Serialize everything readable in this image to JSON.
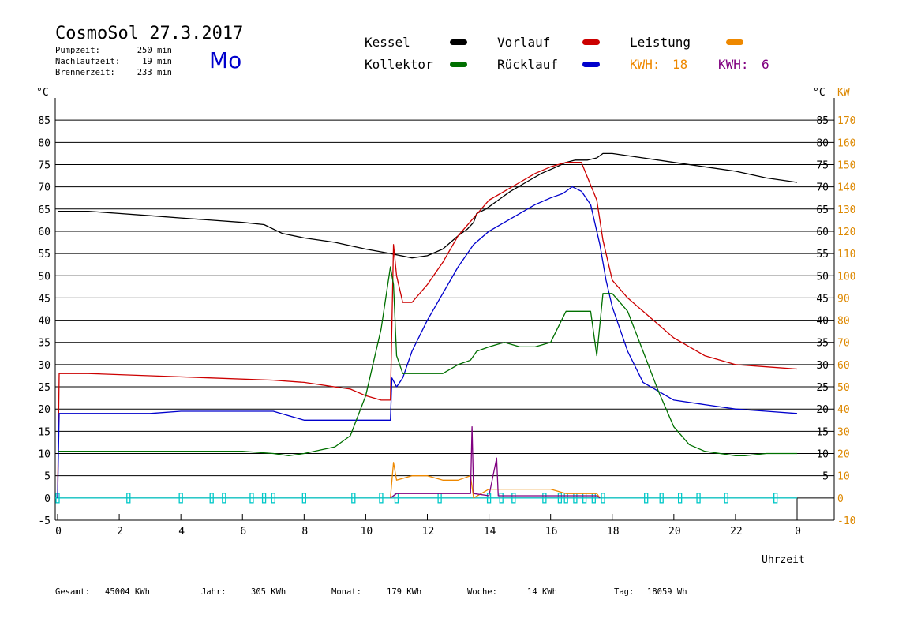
{
  "header": {
    "title": "CosmoSol 27.3.2017",
    "pump_label": "Pumpzeit:",
    "pump_value": "250 min",
    "nachlauf_label": "Nachlaufzeit:",
    "nachlauf_value": "19 min",
    "brenner_label": "Brennerzeit:",
    "brenner_value": "233 min",
    "weekday": "Mo"
  },
  "legend": {
    "kessel": "Kessel",
    "kollektor": "Kollektor",
    "vorlauf": "Vorlauf",
    "ruecklauf": "Rücklauf",
    "leistung": "Leistung",
    "kwh1_label": "KWH:",
    "kwh1_value": "18",
    "kwh2_label": "KWH:",
    "kwh2_value": "6"
  },
  "colors": {
    "kessel": "#000000",
    "kollektor": "#007000",
    "vorlauf": "#cc0000",
    "ruecklauf": "#0000cc",
    "leistung": "#ee8800",
    "kwh2": "#800080",
    "pump": "#00c8c8",
    "kw_axis": "#dd8800"
  },
  "axes": {
    "left_unit": "°C",
    "right_unit_c": "°C",
    "right_unit_kw": "KW",
    "xlabel": "Uhrzeit"
  },
  "footer": {
    "gesamt_label": "Gesamt:",
    "gesamt_value": "45004 KWh",
    "jahr_label": "Jahr:",
    "jahr_value": "305 KWh",
    "monat_label": "Monat:",
    "monat_value": "179 KWh",
    "woche_label": "Woche:",
    "woche_value": "14 KWh",
    "tag_label": "Tag:",
    "tag_value": "18059 Wh"
  },
  "chart_data": {
    "type": "line",
    "xlim": [
      0,
      24
    ],
    "ylim": [
      -5,
      90
    ],
    "ylim_kw": [
      -10,
      180
    ],
    "y_ticks_left": [
      "-5",
      "0",
      "5",
      "10",
      "15",
      "20",
      "25",
      "30",
      "35",
      "40",
      "45",
      "50",
      "55",
      "60",
      "65",
      "70",
      "75",
      "80",
      "85"
    ],
    "y_ticks_right_c": [
      "5",
      "10",
      "15",
      "20",
      "25",
      "30",
      "35",
      "40",
      "45",
      "50",
      "55",
      "60",
      "65",
      "70",
      "75",
      "80",
      "85"
    ],
    "y_ticks_right_kw": [
      "-10",
      "0",
      "10",
      "20",
      "30",
      "40",
      "50",
      "60",
      "70",
      "80",
      "90",
      "100",
      "110",
      "120",
      "130",
      "140",
      "150",
      "160",
      "170"
    ],
    "x_ticks": [
      "0",
      "2",
      "4",
      "6",
      "8",
      "10",
      "12",
      "14",
      "16",
      "18",
      "20",
      "22",
      "0"
    ],
    "x_tick_values": [
      0,
      2,
      4,
      6,
      8,
      10,
      12,
      14,
      16,
      18,
      20,
      22,
      24
    ],
    "grid": true,
    "series": [
      {
        "key": "kessel",
        "x": [
          0,
          1,
          2,
          3,
          4,
          5,
          6,
          6.7,
          7.3,
          8,
          9,
          10,
          10.8,
          11.5,
          12,
          12.5,
          13,
          13.3,
          13.5,
          13.6,
          13.9,
          14.3,
          14.7,
          15.2,
          15.7,
          16.2,
          16.5,
          16.8,
          17.2,
          17.5,
          17.7,
          18,
          19,
          20,
          21,
          22,
          23,
          24
        ],
        "y": [
          64.5,
          64.5,
          64,
          63.5,
          63,
          62.5,
          62,
          61.5,
          59.5,
          58.5,
          57.5,
          56,
          55,
          54,
          54.5,
          56,
          59,
          60.5,
          62,
          64,
          65,
          67,
          69,
          71,
          73,
          74.5,
          75.5,
          76,
          76,
          76.5,
          77.5,
          77.5,
          76.5,
          75.5,
          74.5,
          73.5,
          72,
          71
        ]
      },
      {
        "key": "vorlauf",
        "x": [
          0,
          0.05,
          0.1,
          1,
          3,
          5,
          7,
          8,
          9,
          9.5,
          10,
          10.5,
          10.8,
          10.9,
          11,
          11.2,
          11.5,
          12,
          12.5,
          13,
          13.5,
          14,
          14.5,
          15,
          15.5,
          16,
          16.5,
          17,
          17.5,
          17.7,
          18,
          18.5,
          19,
          20,
          21,
          22,
          23,
          24
        ],
        "y": [
          0,
          28,
          28,
          28,
          27.5,
          27,
          26.5,
          26,
          25,
          24.5,
          23,
          22,
          22,
          57,
          50,
          44,
          44,
          48,
          53,
          59,
          63,
          67,
          69,
          71,
          73,
          74.5,
          75.5,
          75.5,
          67,
          58,
          49,
          45,
          42,
          36,
          32,
          30,
          29.5,
          29
        ]
      },
      {
        "key": "ruecklauf",
        "x": [
          0,
          0.05,
          0.1,
          1,
          3,
          4,
          5,
          6,
          7,
          8,
          9,
          10,
          10.8,
          10.85,
          11,
          11.2,
          11.5,
          12,
          12.5,
          13,
          13.5,
          14,
          14.5,
          15,
          15.5,
          16,
          16.4,
          16.7,
          17,
          17.3,
          17.6,
          17.8,
          18,
          18.5,
          19,
          20,
          21,
          22,
          23,
          24
        ],
        "y": [
          0,
          19,
          19,
          19,
          19,
          19.5,
          19.5,
          19.5,
          19.5,
          17.5,
          17.5,
          17.5,
          17.5,
          27,
          25,
          27,
          33,
          40,
          46,
          52,
          57,
          60,
          62,
          64,
          66,
          67.5,
          68.5,
          70,
          69,
          66,
          57,
          49,
          43,
          33,
          26,
          22,
          21,
          20,
          19.5,
          19
        ]
      },
      {
        "key": "kollektor",
        "x": [
          0,
          1,
          2,
          3,
          4,
          5,
          6,
          7,
          7.5,
          8,
          9,
          9.5,
          10,
          10.5,
          10.8,
          10.9,
          11,
          11.2,
          11.5,
          12,
          12.5,
          13,
          13.4,
          13.6,
          14,
          14.5,
          15,
          15.5,
          16,
          16.5,
          17,
          17.3,
          17.5,
          17.7,
          18,
          18.5,
          19,
          19.5,
          20,
          20.5,
          21,
          21.5,
          22,
          22.3,
          23,
          24
        ],
        "y": [
          10.5,
          10.5,
          10.5,
          10.5,
          10.5,
          10.5,
          10.5,
          10,
          9.5,
          10,
          11.5,
          14,
          23,
          38,
          52,
          48,
          32,
          28,
          28,
          28,
          28,
          30,
          31,
          33,
          34,
          35,
          34,
          34,
          35,
          42,
          42,
          42,
          32,
          46,
          46,
          42,
          33,
          24,
          16,
          12,
          10.5,
          10,
          9.5,
          9.5,
          10,
          10
        ]
      },
      {
        "key": "leistung",
        "x": [
          10.8,
          10.9,
          11,
          11.5,
          12,
          12.5,
          13,
          13.4,
          13.5,
          14,
          14.5,
          15,
          15.5,
          16,
          16.5,
          17,
          17.5,
          17.6
        ],
        "y": [
          0,
          8,
          4,
          5,
          5,
          4,
          4,
          5,
          0,
          2,
          2,
          2,
          2,
          2,
          1,
          1,
          1,
          0
        ]
      },
      {
        "key": "kwh2",
        "x": [
          10.8,
          11,
          12,
          13,
          13.4,
          13.45,
          13.5,
          14,
          14.25,
          14.3,
          14.4,
          15,
          16,
          16.5,
          17,
          17.5,
          17.6
        ],
        "y": [
          0,
          1,
          1,
          1,
          1,
          16,
          1,
          0.5,
          9,
          0.5,
          0.5,
          0.5,
          0.5,
          0.5,
          0.5,
          0.5,
          0
        ]
      }
    ],
    "pump_markers": [
      0,
      2.3,
      4,
      5,
      5.4,
      6.3,
      6.7,
      7,
      8,
      9.6,
      10.5,
      11,
      12.4,
      14,
      14.4,
      14.8,
      15.8,
      16.3,
      16.5,
      16.8,
      17.1,
      17.4,
      17.7,
      19.1,
      19.6,
      20.2,
      20.8,
      21.7,
      23.3
    ]
  }
}
